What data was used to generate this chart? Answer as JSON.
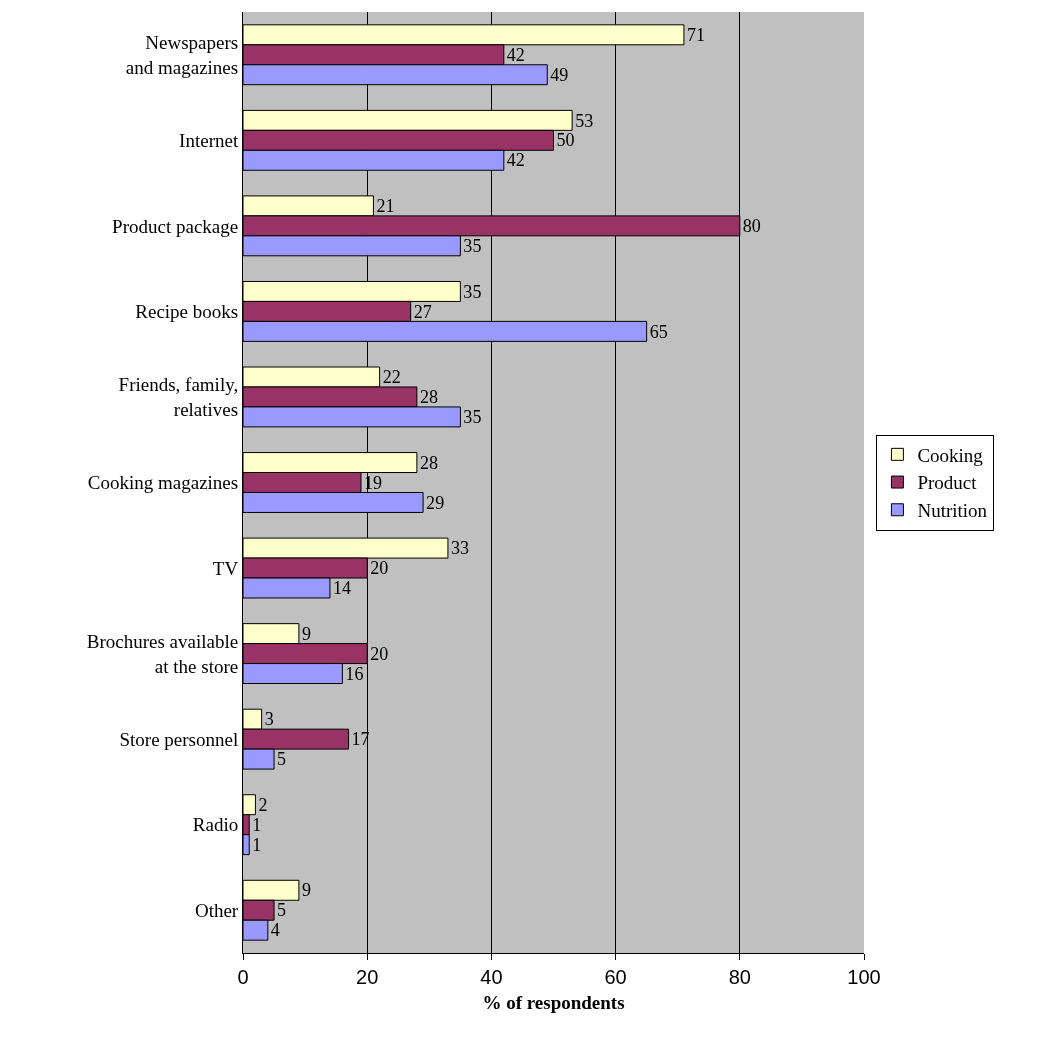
{
  "chart_data": {
    "type": "bar",
    "orientation": "horizontal",
    "xlabel": "% of respondents",
    "categories": [
      "Newspapers and magazines",
      "Internet",
      "Product package",
      "Recipe books",
      "Friends, family, relatives",
      "Cooking magazines",
      "TV",
      "Brochures available at the store",
      "Store personnel",
      "Radio",
      "Other"
    ],
    "series": [
      {
        "name": "Cooking",
        "color": "#ffffcc",
        "values": [
          71,
          53,
          21,
          35,
          22,
          28,
          33,
          9,
          3,
          2,
          9
        ]
      },
      {
        "name": "Product",
        "color": "#993366",
        "values": [
          42,
          50,
          80,
          27,
          28,
          19,
          20,
          20,
          17,
          1,
          5
        ]
      },
      {
        "name": "Nutrition",
        "color": "#9999ff",
        "values": [
          49,
          42,
          35,
          65,
          35,
          29,
          14,
          16,
          5,
          1,
          4
        ]
      }
    ],
    "xlim": [
      0,
      100
    ],
    "xticks": [
      0,
      20,
      40,
      60,
      80,
      100
    ],
    "grid": "x",
    "legend": "right",
    "data_labels": true
  }
}
